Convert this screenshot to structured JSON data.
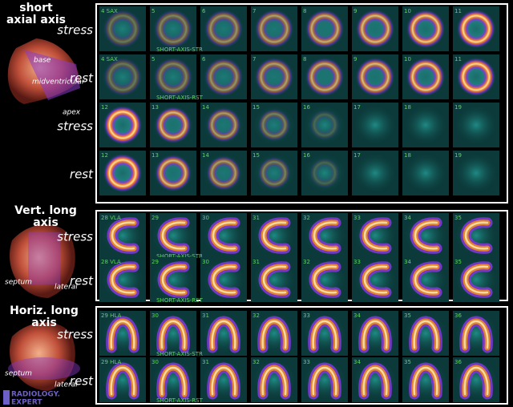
{
  "sections": [
    {
      "title": "short axial axis",
      "heart_labels": [
        "base",
        "midventricular",
        "apex"
      ],
      "rows": [
        {
          "label": "stress",
          "frames": [
            "4 SAX",
            "5",
            "6",
            "7",
            "8",
            "9",
            "10",
            "11"
          ],
          "caption": "SHORT-AXIS-STR"
        },
        {
          "label": "rest",
          "frames": [
            "4 SAX",
            "5",
            "6",
            "7",
            "8",
            "9",
            "10",
            "11"
          ],
          "caption": "SHORT-AXIS-RST"
        },
        {
          "label": "stress",
          "frames": [
            "12",
            "13",
            "14",
            "15",
            "16",
            "17",
            "18",
            "19"
          ]
        },
        {
          "label": "rest",
          "frames": [
            "12",
            "13",
            "14",
            "15",
            "16",
            "17",
            "18",
            "19"
          ]
        }
      ]
    },
    {
      "title": "Vert. long axis",
      "heart_labels": [
        "septum",
        "lateral"
      ],
      "rows": [
        {
          "label": "stress",
          "frames": [
            "28 VLA",
            "29",
            "30",
            "31",
            "32",
            "33",
            "34",
            "35"
          ],
          "caption": "SHORT-AXIS-STR"
        },
        {
          "label": "rest",
          "frames": [
            "28 VLA",
            "29",
            "30",
            "31",
            "32",
            "33",
            "34",
            "35"
          ],
          "caption": "SHORT-AXIS-RST"
        }
      ]
    },
    {
      "title": "Horiz. long axis",
      "heart_labels": [
        "septum",
        "lateral"
      ],
      "rows": [
        {
          "label": "stress",
          "frames": [
            "29 HLA",
            "30",
            "31",
            "32",
            "33",
            "34",
            "35",
            "36"
          ],
          "caption": "SHORT-AXIS-STR"
        },
        {
          "label": "rest",
          "frames": [
            "29 HLA",
            "30",
            "31",
            "32",
            "33",
            "34",
            "35",
            "36"
          ],
          "caption": "SHORT-AXIS-RST"
        }
      ]
    }
  ],
  "logo": [
    "RADIOLOGY.",
    "EXPERT"
  ]
}
